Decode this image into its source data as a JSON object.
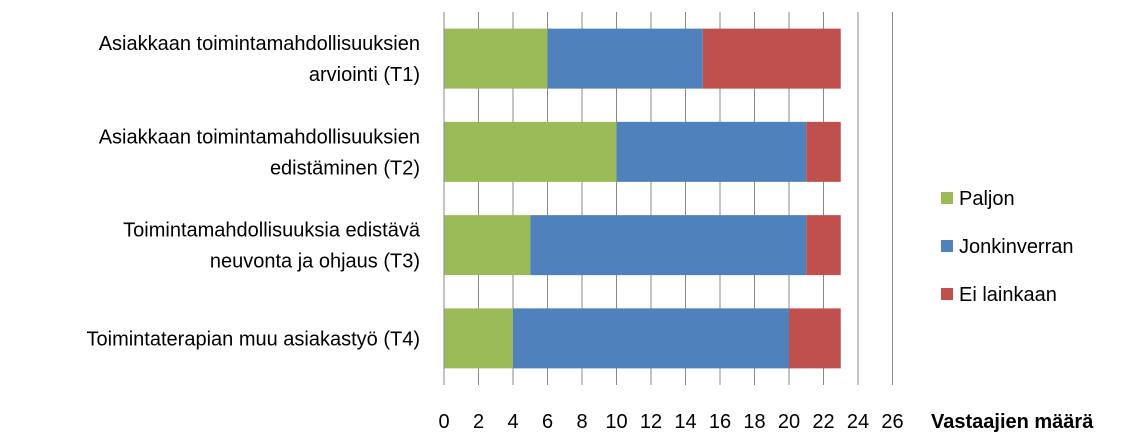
{
  "chart_data": {
    "type": "bar",
    "orientation": "horizontal",
    "stacked": true,
    "categories": [
      [
        "Asiakkaan toimintamahdollisuuksien",
        "arviointi (T1)"
      ],
      [
        "Asiakkaan toimintamahdollisuuksien",
        "edistäminen (T2)"
      ],
      [
        "Toimintamahdollisuuksia edistävä",
        "neuvonta ja ohjaus (T3)"
      ],
      [
        "Toimintaterapian muu asiakastyö (T4)"
      ]
    ],
    "series": [
      {
        "name": "Paljon",
        "color": "#9BBB59",
        "values": [
          6,
          10,
          5,
          4
        ]
      },
      {
        "name": "Jonkinverran",
        "color": "#4F81BD",
        "values": [
          9,
          11,
          16,
          16
        ]
      },
      {
        "name": "Ei lainkaan",
        "color": "#C0504D",
        "values": [
          8,
          2,
          2,
          3
        ]
      }
    ],
    "xlabel": "Vastaajien määrä",
    "xlim": [
      0,
      26
    ],
    "xticks": [
      "0",
      "2",
      "4",
      "6",
      "8",
      "10",
      "12",
      "14",
      "16",
      "18",
      "20",
      "22",
      "24",
      "26"
    ],
    "grid": true,
    "legend_position": "right"
  }
}
